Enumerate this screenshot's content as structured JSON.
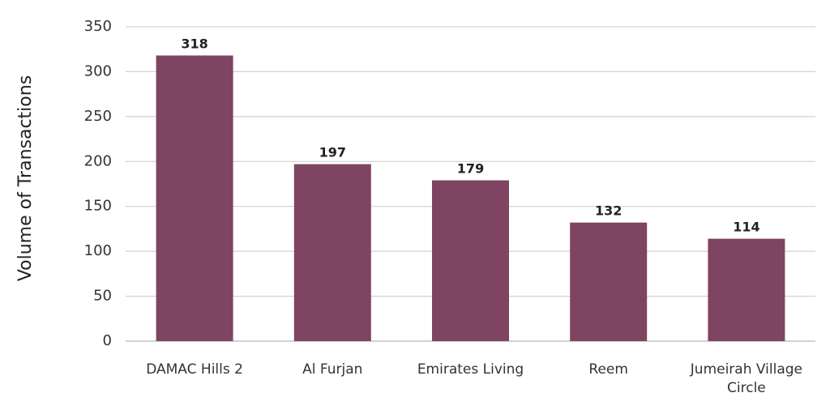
{
  "chart_data": {
    "type": "bar",
    "categories": [
      "DAMAC Hills 2",
      "Al Furjan",
      "Emirates Living",
      "Reem",
      "Jumeirah Village Circle"
    ],
    "category_lines": [
      [
        "DAMAC Hills 2"
      ],
      [
        "Al Furjan"
      ],
      [
        "Emirates Living"
      ],
      [
        "Reem"
      ],
      [
        "Jumeirah Village",
        "Circle"
      ]
    ],
    "values": [
      318,
      197,
      179,
      132,
      114
    ],
    "data_labels": [
      "318",
      "197",
      "179",
      "132",
      "114"
    ],
    "title": "",
    "xlabel": "",
    "ylabel": "Volume of Transactions",
    "ylim": [
      0,
      350
    ],
    "yticks": [
      0,
      50,
      100,
      150,
      200,
      250,
      300,
      350
    ],
    "grid": true,
    "legend": "none",
    "bar_color": "#7e4462"
  }
}
